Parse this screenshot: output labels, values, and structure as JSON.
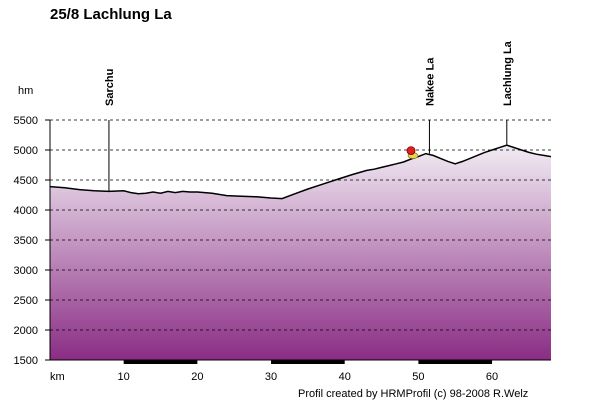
{
  "chart_data": {
    "type": "area",
    "title": "25/8 Lachlung La",
    "ylabel": "hm",
    "xlabel": "km",
    "ylim": [
      1500,
      5500
    ],
    "xlim": [
      0,
      68
    ],
    "yticks": [
      1500,
      2000,
      2500,
      3000,
      3500,
      4000,
      4500,
      5000,
      5500
    ],
    "xticks": [
      10,
      20,
      30,
      40,
      50,
      60
    ],
    "grid": true,
    "series": [
      {
        "x": [
          0,
          2,
          4,
          6,
          8,
          10,
          11,
          12,
          13,
          14,
          15,
          16,
          17,
          18,
          19,
          20,
          22,
          24,
          26,
          28,
          30,
          31.5,
          33,
          35,
          37,
          39,
          41,
          43,
          44,
          45,
          46,
          47,
          48,
          49,
          50,
          51,
          52,
          53,
          54,
          55,
          56,
          57,
          58,
          59,
          60,
          61,
          62,
          63,
          64,
          65,
          66,
          67,
          68
        ],
        "y": [
          4390,
          4370,
          4340,
          4320,
          4310,
          4320,
          4290,
          4270,
          4280,
          4300,
          4280,
          4310,
          4290,
          4310,
          4300,
          4300,
          4280,
          4240,
          4230,
          4220,
          4200,
          4190,
          4260,
          4350,
          4430,
          4510,
          4590,
          4660,
          4680,
          4710,
          4740,
          4770,
          4800,
          4850,
          4890,
          4940,
          4910,
          4860,
          4810,
          4770,
          4810,
          4860,
          4910,
          4960,
          5000,
          5040,
          5080,
          5040,
          5000,
          4960,
          4930,
          4910,
          4890
        ]
      }
    ],
    "annotations": [
      {
        "label": "Sarchu",
        "x": 8,
        "y": 4310
      },
      {
        "label": "Nakee La",
        "x": 51.5,
        "y": 4940
      },
      {
        "label": "Lachlung La",
        "x": 62,
        "y": 5080
      }
    ],
    "marker": {
      "x": 49,
      "y": 4990,
      "color": "#e02020"
    },
    "footer": "Profil created by HRMProfil (c) 98-2008 R.Welz",
    "colors": {
      "line": "#000000",
      "fill_top": "#f2ecf4",
      "fill_bottom": "#8a2d84",
      "grid": "#000000"
    }
  }
}
